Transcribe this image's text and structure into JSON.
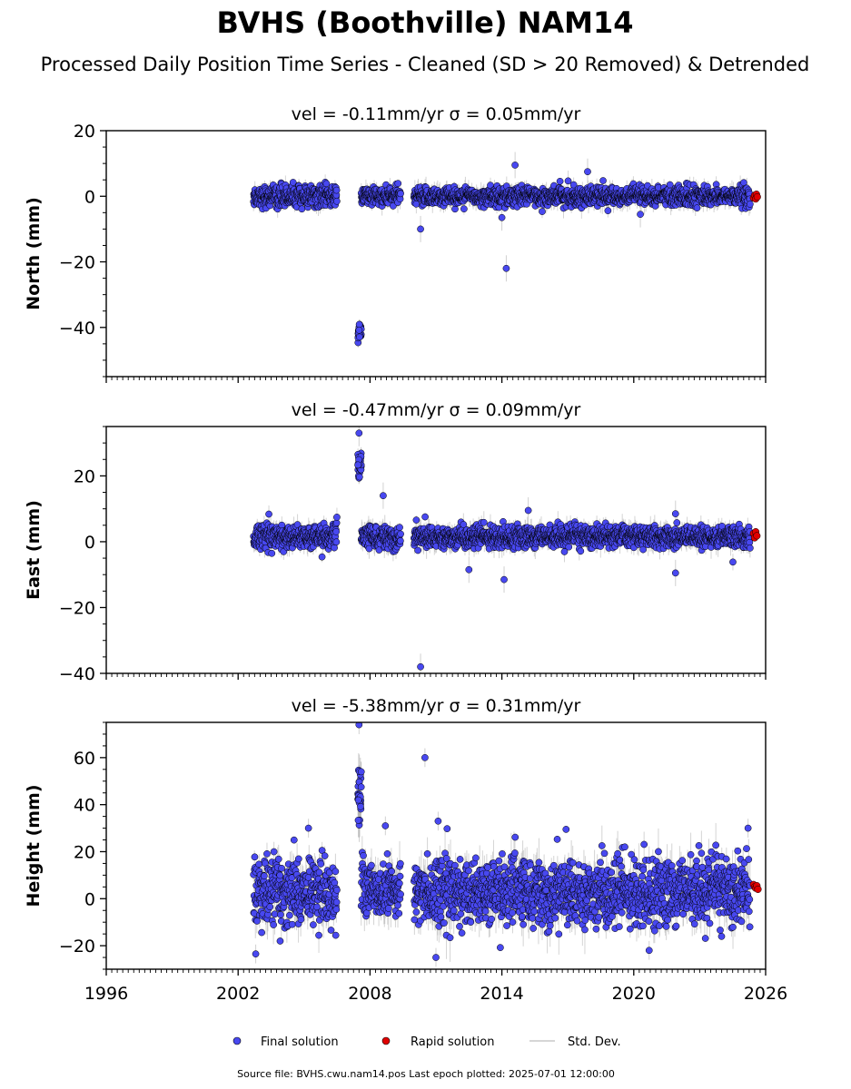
{
  "title": "BVHS (Boothville) NAM14",
  "subtitle": "Processed Daily Position Time Series - Cleaned (SD > 20 Removed) & Detrended",
  "footer": "Source file: BVHS.cwu.nam14.pos  Last epoch plotted: 2025-07-01 12:00:00",
  "legend": {
    "final_label": "Final solution",
    "rapid_label": "Rapid solution",
    "std_label": "Std. Dev."
  },
  "colors": {
    "final": "#4848f0",
    "rapid": "#e00000",
    "std": "#b0b0b0",
    "edge": "#000000"
  },
  "chart_data": [
    {
      "type": "scatter",
      "component": "north",
      "title": "vel = -0.11mm/yr   σ = 0.05mm/yr",
      "ylabel": "North (mm)",
      "xlabel": "",
      "xlim": [
        1996,
        2026
      ],
      "ylim": [
        -55,
        20
      ],
      "yticks": [
        20,
        0,
        -20,
        -40
      ],
      "yticklabels": [
        "20",
        "0",
        "−20",
        "−40"
      ],
      "grid": false,
      "segments": [
        {
          "start": 2002.7,
          "end": 2006.5,
          "center": 0,
          "spread": 1.6,
          "err": 1.6
        },
        {
          "start": 2007.6,
          "end": 2009.4,
          "center": 0,
          "spread": 1.4,
          "err": 1.8
        },
        {
          "start": 2010.0,
          "end": 2025.3,
          "center": 0,
          "spread": 1.4,
          "err": 1.8
        }
      ],
      "offset_cluster": {
        "start": 2007.45,
        "end": 2007.6,
        "center": -41,
        "spread": 2.5
      },
      "outliers": [
        [
          2010.3,
          -10
        ],
        [
          2014.2,
          -22
        ],
        [
          2014.6,
          9.5
        ],
        [
          2017.9,
          7.5
        ],
        [
          2014.0,
          -6.5
        ],
        [
          2020.3,
          -5.5
        ]
      ],
      "rapid": [
        [
          2025.45,
          -0.5
        ],
        [
          2025.5,
          0.3
        ],
        [
          2025.55,
          -0.8
        ],
        [
          2025.58,
          0.6
        ],
        [
          2025.62,
          -0.2
        ]
      ]
    },
    {
      "type": "scatter",
      "component": "east",
      "title": "vel = -0.47mm/yr   σ = 0.09mm/yr",
      "ylabel": "East (mm)",
      "xlabel": "",
      "xlim": [
        1996,
        2026
      ],
      "ylim": [
        -40,
        35
      ],
      "yticks": [
        20,
        0,
        -20,
        -40
      ],
      "yticklabels": [
        "20",
        "0",
        "−20",
        "−40"
      ],
      "grid": false,
      "segments": [
        {
          "start": 2002.7,
          "end": 2006.5,
          "center": 1.5,
          "spread": 1.8,
          "err": 1.8
        },
        {
          "start": 2007.6,
          "end": 2009.4,
          "center": 1.5,
          "spread": 1.8,
          "err": 2.0
        },
        {
          "start": 2010.0,
          "end": 2025.3,
          "center": 1.5,
          "spread": 1.6,
          "err": 2.0
        }
      ],
      "offset_cluster": {
        "start": 2007.45,
        "end": 2007.6,
        "center": 23,
        "spread": 3.0
      },
      "outliers": [
        [
          2007.5,
          33
        ],
        [
          2008.6,
          14
        ],
        [
          2010.3,
          -38
        ],
        [
          2012.5,
          -8.5
        ],
        [
          2014.1,
          -11.5
        ],
        [
          2021.9,
          -9.5
        ],
        [
          2015.2,
          9.5
        ],
        [
          2021.9,
          8.5
        ]
      ],
      "rapid": [
        [
          2025.45,
          2.5
        ],
        [
          2025.5,
          1.2
        ],
        [
          2025.55,
          3.0
        ],
        [
          2025.6,
          1.8
        ]
      ]
    },
    {
      "type": "scatter",
      "component": "height",
      "title": "vel = -5.38mm/yr   σ = 0.31mm/yr",
      "ylabel": "Height (mm)",
      "xlabel": "",
      "xlim": [
        1996,
        2026
      ],
      "ylim": [
        -30,
        75
      ],
      "yticks": [
        60,
        40,
        20,
        0,
        -20
      ],
      "yticklabels": [
        "60",
        "40",
        "20",
        "0",
        "−20"
      ],
      "xticks": [
        1996,
        2002,
        2008,
        2014,
        2020,
        2026
      ],
      "xticklabels": [
        "1996",
        "2002",
        "2008",
        "2014",
        "2020",
        "2026"
      ],
      "grid": false,
      "segments": [
        {
          "start": 2002.7,
          "end": 2006.5,
          "center": 3,
          "spread": 7,
          "err": 5
        },
        {
          "start": 2007.6,
          "end": 2009.4,
          "center": 4,
          "spread": 6,
          "err": 6
        },
        {
          "start": 2010.0,
          "end": 2025.3,
          "center": 3,
          "spread": 7,
          "err": 6
        }
      ],
      "offset_cluster": {
        "start": 2007.45,
        "end": 2007.6,
        "center": 42,
        "spread": 12
      },
      "outliers": [
        [
          2007.5,
          74
        ],
        [
          2007.6,
          54
        ],
        [
          2010.5,
          60
        ],
        [
          2008.7,
          31
        ],
        [
          2011.1,
          33
        ],
        [
          2002.8,
          -23.5
        ],
        [
          2011.0,
          -25
        ],
        [
          2025.2,
          30
        ],
        [
          2020.7,
          -22
        ],
        [
          2005.2,
          30
        ]
      ],
      "rapid": [
        [
          2025.45,
          6
        ],
        [
          2025.5,
          5
        ],
        [
          2025.55,
          4.5
        ],
        [
          2025.6,
          5.5
        ],
        [
          2025.65,
          4
        ]
      ]
    }
  ]
}
